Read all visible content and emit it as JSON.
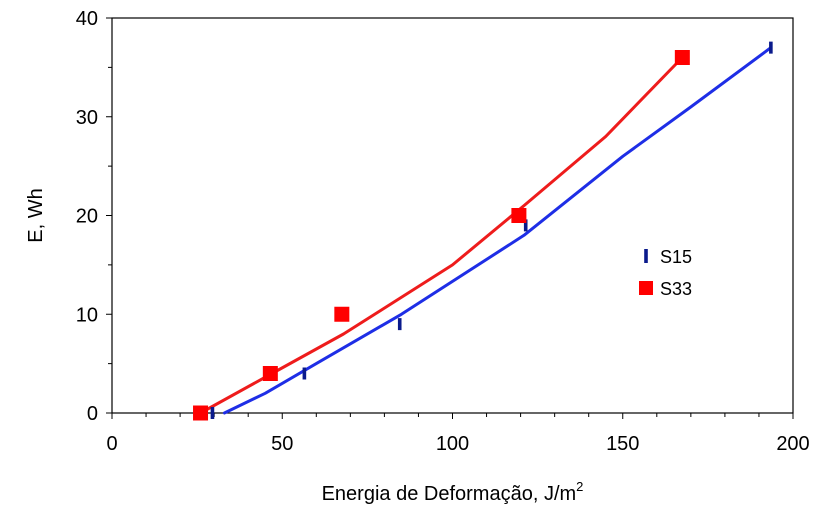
{
  "chart_data": {
    "type": "scatter",
    "title": "",
    "xlabel": "Energia de Deformação, J/m",
    "xlabel_superscript": "2",
    "ylabel": "E, Wh",
    "xlim": [
      0,
      200
    ],
    "ylim": [
      0,
      40
    ],
    "x_ticks": [
      0,
      50,
      100,
      150,
      200
    ],
    "y_ticks": [
      0,
      10,
      20,
      30,
      40
    ],
    "x_tick_labels": [
      "0",
      "50",
      "100",
      "150",
      "200"
    ],
    "y_tick_labels": [
      "0",
      "10",
      "20",
      "30",
      "40"
    ],
    "grid": false,
    "legend_position": "right",
    "series": [
      {
        "name": "S15",
        "color": "#0a1a8c",
        "line_color": "#1e2ee6",
        "marker": "dash",
        "points": [
          [
            29.5,
            0
          ],
          [
            56.5,
            4
          ],
          [
            84.5,
            9
          ],
          [
            121.5,
            19
          ],
          [
            193.5,
            37
          ]
        ],
        "fit_line": [
          [
            33,
            0
          ],
          [
            45,
            2
          ],
          [
            60,
            5
          ],
          [
            85,
            10
          ],
          [
            121,
            18
          ],
          [
            150,
            26
          ],
          [
            170,
            31
          ],
          [
            193.5,
            37
          ]
        ]
      },
      {
        "name": "S33",
        "color": "#ff0000",
        "line_color": "#ee1c1c",
        "marker": "square",
        "points": [
          [
            26,
            0
          ],
          [
            46.5,
            4
          ],
          [
            67.5,
            10
          ],
          [
            119.5,
            20
          ],
          [
            167.5,
            36
          ]
        ],
        "fit_line": [
          [
            26,
            0
          ],
          [
            47,
            4
          ],
          [
            68,
            8
          ],
          [
            100,
            15
          ],
          [
            121,
            21
          ],
          [
            145,
            28
          ],
          [
            167.5,
            36
          ]
        ]
      }
    ]
  }
}
